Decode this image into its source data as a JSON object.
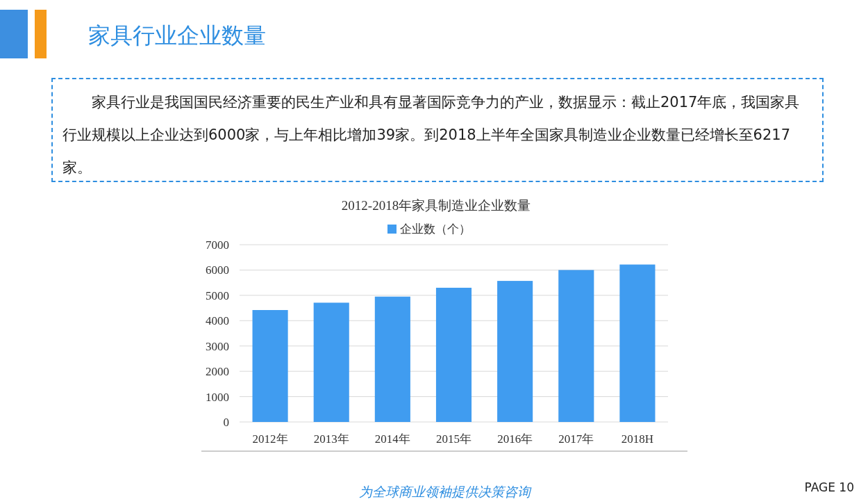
{
  "chart_data": {
    "type": "bar",
    "title": "家具行业企业数量",
    "subtitle": "2012-2018年家具制造业企业数量",
    "categories": [
      "2012年",
      "2013年",
      "2014年",
      "2015年",
      "2016年",
      "2017年",
      "2018H"
    ],
    "series": [
      {
        "name": "企业数（个）",
        "color": "#409cf0",
        "values": [
          4420,
          4710,
          4950,
          5300,
          5570,
          6000,
          6217
        ]
      }
    ],
    "ylim": [
      0,
      7000
    ],
    "yticks": [
      0,
      1000,
      2000,
      3000,
      4000,
      5000,
      6000,
      7000
    ],
    "grid": "y",
    "legend": "top",
    "annotations": [
      "家具行业是我国国民经济重要的民生产业和具有显著国际竞争力的产业，数据显示：截止2017年底，我国家具行业规模以上企业达到6000家，与上年相比增加39家。到2018上半年全国家具制造业企业数量已经增长至6217家。",
      "为全球商业领袖提供决策咨询",
      "PAGE 10"
    ]
  }
}
